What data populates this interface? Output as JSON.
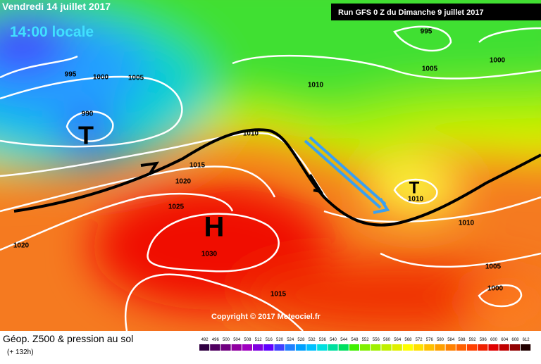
{
  "header": {
    "date": "Vendredi 14 juillet 2017",
    "local_time": "14:00 locale",
    "run": "Run GFS 0 Z du Dimanche 9 juillet 2017"
  },
  "copyright": "Copyright © 2017 Meteociel.fr",
  "footer": {
    "title": "Géop. Z500 & pression au sol",
    "lead": "(+ 132h)"
  },
  "pressure_centers": [
    "T",
    "H",
    "T"
  ],
  "isobar_labels": [
    995,
    1000,
    1005,
    990,
    1010,
    1010,
    1015,
    1020,
    1025,
    1030,
    1015,
    1020,
    995,
    1005,
    1000,
    1010,
    1010,
    1005,
    1000
  ],
  "legend": {
    "values": [
      492,
      496,
      500,
      504,
      508,
      512,
      516,
      520,
      524,
      528,
      532,
      536,
      540,
      544,
      548,
      552,
      556,
      560,
      564,
      568,
      572,
      576,
      580,
      584,
      588,
      592,
      596,
      600,
      604,
      608,
      612
    ],
    "colors": [
      "#300040",
      "#500060",
      "#700080",
      "#9000a0",
      "#a000c0",
      "#8000e0",
      "#6000ff",
      "#4040ff",
      "#2080ff",
      "#00a0ff",
      "#00c0ff",
      "#00e0e0",
      "#00e0a0",
      "#00e060",
      "#40f000",
      "#80f000",
      "#a0f000",
      "#c0f000",
      "#e0f000",
      "#ffff00",
      "#ffe000",
      "#ffc000",
      "#ffa000",
      "#ff8000",
      "#ff6000",
      "#ff4000",
      "#f02000",
      "#e00000",
      "#c00000",
      "#900000",
      "#200000"
    ]
  }
}
